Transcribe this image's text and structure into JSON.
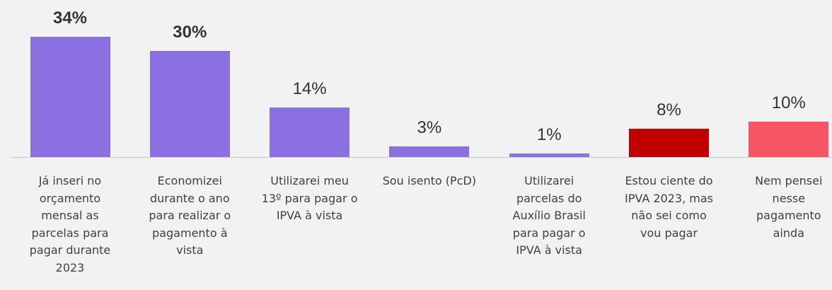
{
  "chart_data": {
    "type": "bar",
    "categories": [
      "Já inseri no\norçamento\nmensal as\nparcelas para\npagar durante\n2023",
      "Economizei\ndurante o ano\npara realizar o\npagamento à\nvista",
      "Utilizarei meu\n13º para pagar o\nIPVA à vista",
      "Sou isento (PcD)",
      "Utilizarei\nparcelas do\nAuxílio Brasil\npara pagar o\nIPVA à vista",
      "Estou ciente do\nIPVA 2023, mas\nnão sei como\nvou pagar",
      "Nem pensei\nnesse\npagamento\nainda"
    ],
    "values": [
      34,
      30,
      14,
      3,
      1,
      8,
      10
    ],
    "value_labels": [
      "34%",
      "30%",
      "14%",
      "3%",
      "1%",
      "8%",
      "10%"
    ],
    "colors": [
      "#8a70e0",
      "#8a70e0",
      "#8a70e0",
      "#8a70e0",
      "#8a70e0",
      "#c00000",
      "#f75464"
    ]
  }
}
